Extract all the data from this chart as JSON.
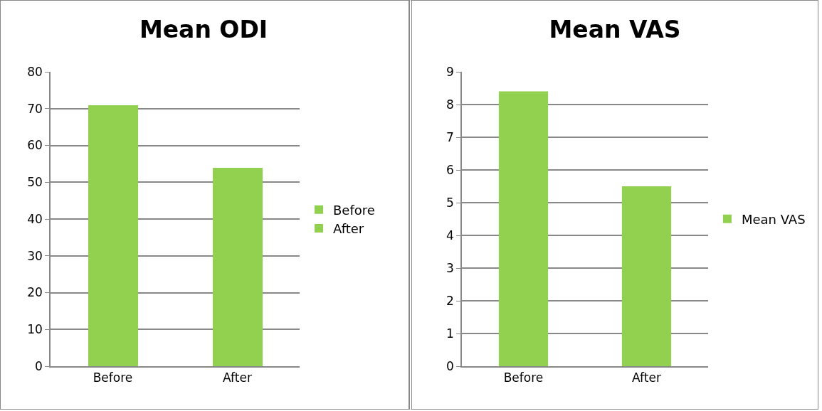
{
  "chart_data": [
    {
      "type": "bar",
      "title": "Mean ODI",
      "categories": [
        "Before",
        "After"
      ],
      "stacked": true,
      "series": [
        {
          "name": "Before",
          "color": "#92d050",
          "values": [
            71,
            null
          ]
        },
        {
          "name": "After",
          "color": "#92d050",
          "values": [
            null,
            54
          ]
        }
      ],
      "ylim": [
        0,
        80
      ],
      "yticks": [
        0,
        10,
        20,
        30,
        40,
        50,
        60,
        70,
        80
      ],
      "grid": "y",
      "legend": "right"
    },
    {
      "type": "bar",
      "title": "Mean VAS",
      "categories": [
        "Before",
        "After"
      ],
      "series": [
        {
          "name": "Mean VAS",
          "color": "#92d050",
          "values": [
            8.4,
            5.5
          ]
        }
      ],
      "ylim": [
        0,
        9
      ],
      "yticks": [
        0,
        1,
        2,
        3,
        4,
        5,
        6,
        7,
        8,
        9
      ],
      "grid": "y",
      "legend": "right"
    }
  ]
}
